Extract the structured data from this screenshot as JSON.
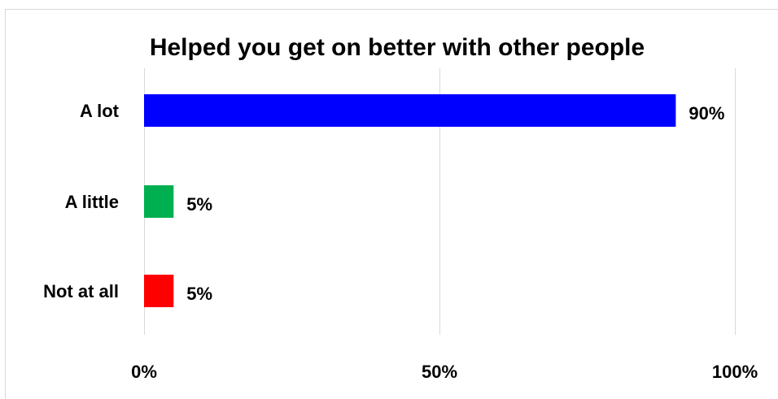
{
  "chart_data": {
    "type": "bar",
    "orientation": "horizontal",
    "title": "Helped you get on better with other people",
    "categories": [
      "A lot",
      "A little",
      "Not at all"
    ],
    "values": [
      90,
      5,
      5
    ],
    "data_labels": [
      "90%",
      "5%",
      "5%"
    ],
    "colors": [
      "#0000ff",
      "#00b050",
      "#ff0000"
    ],
    "xlim": [
      0,
      100
    ],
    "x_ticks": [
      0,
      50,
      100
    ],
    "x_tick_labels": [
      "0%",
      "50%",
      "100%"
    ],
    "xlabel": "",
    "ylabel": "",
    "grid": true,
    "legend": "none"
  }
}
